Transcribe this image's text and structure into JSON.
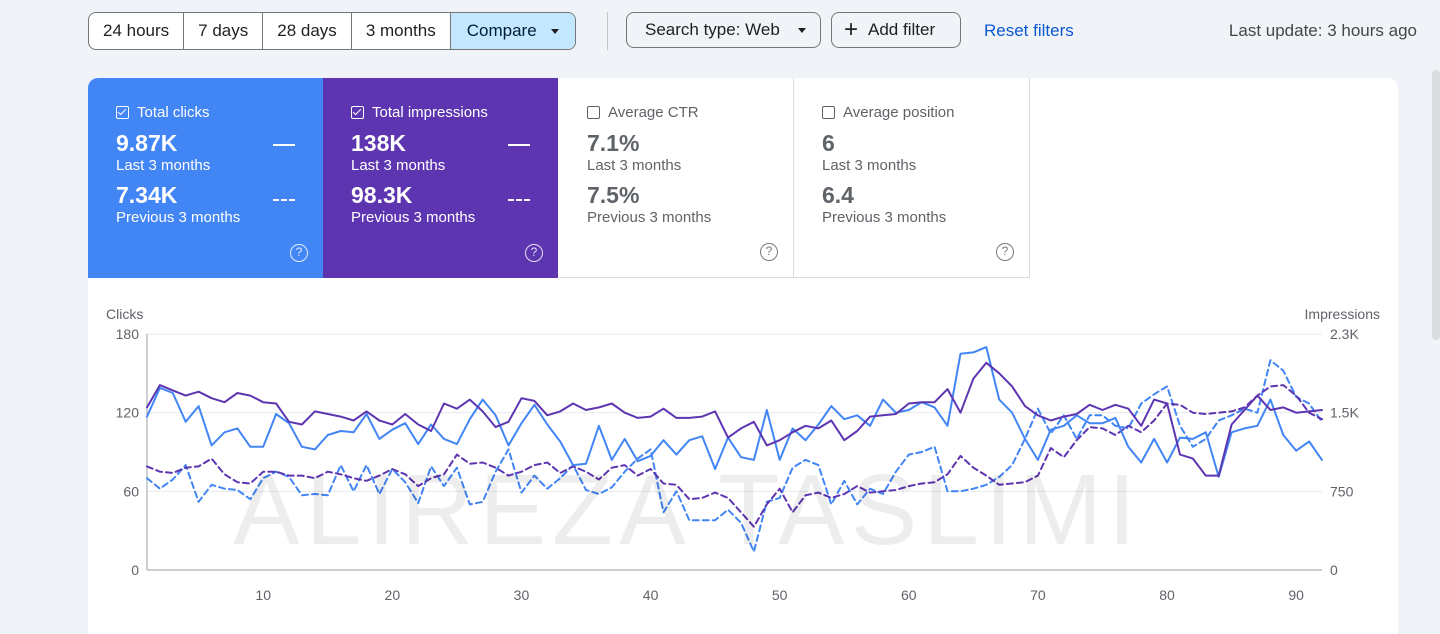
{
  "toolbar": {
    "ranges": [
      "24 hours",
      "7 days",
      "28 days",
      "3 months"
    ],
    "compare_label": "Compare",
    "search_type_label": "Search type: Web",
    "add_filter_label": "Add filter",
    "reset_label": "Reset filters",
    "last_update": "Last update: 3 hours ago"
  },
  "metrics": {
    "clicks": {
      "label": "Total clicks",
      "value": "9.87K",
      "period": "Last 3 months",
      "prev_value": "7.34K",
      "prev_period": "Previous 3 months",
      "checked": true,
      "color": "#4285f4"
    },
    "impressions": {
      "label": "Total impressions",
      "value": "138K",
      "period": "Last 3 months",
      "prev_value": "98.3K",
      "prev_period": "Previous 3 months",
      "checked": true,
      "color": "#5e35b1"
    },
    "ctr": {
      "label": "Average CTR",
      "value": "7.1%",
      "period": "Last 3 months",
      "prev_value": "7.5%",
      "prev_period": "Previous 3 months",
      "checked": false
    },
    "position": {
      "label": "Average position",
      "value": "6",
      "period": "Last 3 months",
      "prev_value": "6.4",
      "prev_period": "Previous 3 months",
      "checked": false
    }
  },
  "help_glyph": "?",
  "watermark": "ALIREZA TASLIMI",
  "chart_data": {
    "type": "line",
    "left_axis_label": "Clicks",
    "right_axis_label": "Impressions",
    "left_ylim": [
      0,
      180
    ],
    "right_ylim": [
      0,
      2300
    ],
    "left_ticks": [
      "0",
      "60",
      "120",
      "180"
    ],
    "right_ticks": [
      "0",
      "750",
      "1.5K",
      "2.3K"
    ],
    "x_ticks": [
      "10",
      "20",
      "30",
      "40",
      "50",
      "60",
      "70",
      "80",
      "90"
    ],
    "x_range": [
      1,
      92
    ],
    "colors": {
      "clicks": "#4285f4",
      "impressions": "#5e35b1"
    },
    "series": [
      {
        "name": "Total clicks",
        "axis": "left",
        "style": "solid",
        "color": "#4285f4",
        "values": [
          117,
          139,
          135,
          113,
          125,
          95,
          105,
          108,
          94,
          94,
          119,
          112,
          94,
          92,
          103,
          106,
          105,
          119,
          100,
          107,
          112,
          96,
          111,
          100,
          96,
          115,
          130,
          118,
          95,
          112,
          126,
          111,
          98,
          80,
          81,
          110,
          84,
          100,
          83,
          87,
          99,
          88,
          99,
          102,
          77,
          101,
          86,
          84,
          122,
          84,
          108,
          99,
          111,
          125,
          115,
          118,
          110,
          130,
          120,
          122,
          128,
          124,
          110,
          165,
          166,
          170,
          130,
          120,
          100,
          84,
          107,
          110,
          118,
          112,
          112,
          116,
          94,
          82,
          100,
          82,
          101,
          100,
          105,
          71,
          105,
          108,
          110,
          130,
          103,
          91,
          98,
          84
        ]
      },
      {
        "name": "Total impressions",
        "axis": "left",
        "style": "solid",
        "color": "#5e35b1",
        "values": [
          124,
          141,
          137,
          133,
          136,
          131,
          128,
          135,
          133,
          128,
          127,
          113,
          111,
          121,
          119,
          117,
          114,
          121,
          114,
          111,
          119,
          111,
          106,
          127,
          123,
          130,
          121,
          109,
          113,
          131,
          129,
          118,
          121,
          127,
          122,
          124,
          127,
          120,
          116,
          117,
          123,
          116,
          116,
          117,
          121,
          101,
          108,
          113,
          95,
          99,
          105,
          110,
          108,
          114,
          99,
          106,
          117,
          118,
          119,
          127,
          128,
          128,
          138,
          120,
          146,
          158,
          150,
          140,
          125,
          118,
          114,
          117,
          119,
          126,
          122,
          126,
          123,
          110,
          130,
          127,
          88,
          85,
          72,
          72,
          111,
          122,
          133,
          122,
          124,
          120,
          121,
          122
        ]
      },
      {
        "name": "Total clicks (previous)",
        "axis": "left",
        "style": "dashed",
        "color": "#4285f4",
        "values": [
          70,
          62,
          69,
          80,
          52,
          65,
          62,
          61,
          54,
          70,
          75,
          71,
          57,
          58,
          57,
          80,
          60,
          80,
          58,
          77,
          67,
          51,
          79,
          64,
          78,
          50,
          52,
          75,
          92,
          59,
          72,
          62,
          70,
          80,
          61,
          58,
          63,
          75,
          85,
          92,
          44,
          60,
          38,
          38,
          38,
          46,
          36,
          14,
          52,
          55,
          78,
          84,
          80,
          50,
          68,
          50,
          62,
          58,
          75,
          88,
          90,
          94,
          60,
          60,
          62,
          65,
          71,
          80,
          100,
          123,
          104,
          118,
          100,
          118,
          118,
          110,
          108,
          127,
          134,
          140,
          110,
          94,
          100,
          114,
          118,
          123,
          120,
          160,
          152,
          132,
          127,
          113
        ]
      },
      {
        "name": "Total impressions (previous)",
        "axis": "left",
        "style": "dashed",
        "color": "#5e35b1",
        "values": [
          79,
          75,
          74,
          78,
          79,
          85,
          73,
          67,
          66,
          75,
          75,
          72,
          72,
          70,
          75,
          73,
          70,
          68,
          72,
          77,
          73,
          64,
          70,
          73,
          88,
          81,
          82,
          78,
          72,
          75,
          80,
          82,
          74,
          79,
          75,
          69,
          78,
          80,
          72,
          77,
          66,
          65,
          54,
          55,
          59,
          55,
          44,
          33,
          50,
          62,
          44,
          57,
          59,
          55,
          58,
          64,
          59,
          60,
          61,
          64,
          66,
          67,
          73,
          87,
          78,
          72,
          65,
          66,
          67,
          72,
          93,
          86,
          99,
          109,
          108,
          103,
          110,
          105,
          114,
          127,
          126,
          120,
          119,
          120,
          121,
          124,
          133,
          140,
          141,
          133,
          120,
          115
        ]
      }
    ]
  }
}
